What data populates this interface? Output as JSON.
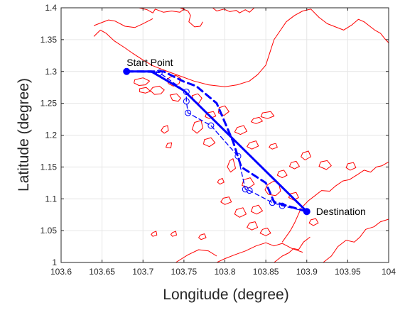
{
  "chart_data": {
    "type": "line",
    "xlabel": "Longitude (degree)",
    "ylabel": "Latitude (degree)",
    "xlim": [
      103.6,
      104.0
    ],
    "ylim": [
      1.0,
      1.4
    ],
    "xticks": [
      103.6,
      103.65,
      103.7,
      103.75,
      103.8,
      103.85,
      103.9,
      103.95,
      104.0
    ],
    "yticks": [
      1.0,
      1.05,
      1.1,
      1.15,
      1.2,
      1.25,
      1.3,
      1.35,
      1.4
    ],
    "xtick_labels": [
      "103.6",
      "103.65",
      "103.7",
      "103.75",
      "103.8",
      "103.85",
      "103.9",
      "103.95",
      "104"
    ],
    "ytick_labels": [
      "1",
      "1.05",
      "1.1",
      "1.15",
      "1.2",
      "1.25",
      "1.3",
      "1.35",
      "1.4"
    ],
    "grid": true,
    "legend": "none",
    "colors": {
      "route": "#0000ff",
      "coastline": "#ff0000",
      "grid": "#e6e6e6",
      "axis": "#262626"
    },
    "annotations": [
      {
        "text": "Start Point",
        "x": 103.68,
        "y": 1.3,
        "anchor": "above-right"
      },
      {
        "text": "Destination",
        "x": 103.9,
        "y": 1.08,
        "anchor": "right"
      }
    ],
    "endpoints": [
      {
        "label": "Start Point",
        "x": 103.68,
        "y": 1.3
      },
      {
        "label": "Destination",
        "x": 103.9,
        "y": 1.08
      }
    ],
    "series": [
      {
        "style": "solid-thick",
        "x": [
          103.68,
          103.71,
          103.75,
          103.9
        ],
        "y": [
          1.3,
          1.3,
          1.27,
          1.08
        ]
      },
      {
        "style": "dashed-thick",
        "x": [
          103.68,
          103.715,
          103.725,
          103.75,
          103.765,
          103.79,
          103.81,
          103.82,
          103.85,
          103.86,
          103.9
        ],
        "y": [
          1.3,
          1.3,
          1.3,
          1.284,
          1.277,
          1.25,
          1.19,
          1.15,
          1.125,
          1.095,
          1.08
        ]
      },
      {
        "style": "dashed-thin-circles",
        "markers": "circle",
        "x": [
          103.68,
          103.72,
          103.753,
          103.753,
          103.755,
          103.783,
          103.816,
          103.825,
          103.83,
          103.858,
          103.87,
          103.9
        ],
        "y": [
          1.3,
          1.298,
          1.268,
          1.253,
          1.235,
          1.215,
          1.167,
          1.115,
          1.113,
          1.094,
          1.089,
          1.08
        ]
      }
    ],
    "coastlines": [
      {
        "x": [
          103.64,
          103.648,
          103.655,
          103.665,
          103.678,
          103.688,
          103.7,
          103.712,
          103.728,
          103.745,
          103.762,
          103.78,
          103.8,
          103.815,
          103.83,
          103.84,
          103.85,
          103.855,
          103.86,
          103.868,
          103.875,
          103.885,
          103.895,
          103.905,
          103.915,
          103.925,
          103.935,
          103.945,
          103.955,
          103.963,
          103.97,
          103.978,
          103.983,
          103.99,
          103.995,
          104.0
        ],
        "y": [
          1.355,
          1.365,
          1.36,
          1.348,
          1.337,
          1.328,
          1.318,
          1.309,
          1.301,
          1.293,
          1.285,
          1.279,
          1.276,
          1.279,
          1.285,
          1.295,
          1.31,
          1.33,
          1.35,
          1.365,
          1.378,
          1.388,
          1.395,
          1.398,
          1.385,
          1.375,
          1.37,
          1.365,
          1.373,
          1.382,
          1.378,
          1.37,
          1.365,
          1.36,
          1.352,
          1.345
        ]
      },
      {
        "x": [
          103.64,
          103.65,
          103.658,
          103.666,
          103.678,
          103.69,
          103.7,
          103.712
        ],
        "y": [
          1.372,
          1.377,
          1.381,
          1.379,
          1.371,
          1.369,
          1.375,
          1.383
        ]
      },
      {
        "x": [
          103.695,
          103.705,
          103.712,
          103.715,
          103.725,
          103.735,
          103.745,
          103.75,
          103.748
        ],
        "y": [
          1.4,
          1.397,
          1.392,
          1.398,
          1.393,
          1.395,
          1.393,
          1.398,
          1.4
        ]
      },
      {
        "x": [
          103.745,
          103.755,
          103.758,
          103.756,
          103.763,
          103.77,
          103.773
        ],
        "y": [
          1.4,
          1.395,
          1.388,
          1.378,
          1.37,
          1.371,
          1.378
        ]
      },
      {
        "x": [
          103.785,
          103.79,
          103.799,
          103.806,
          103.814,
          103.818,
          103.825,
          103.83,
          103.836
        ],
        "y": [
          1.4,
          1.395,
          1.398,
          1.394,
          1.396,
          1.392,
          1.397,
          1.393,
          1.4
        ]
      },
      {
        "x": [
          103.87,
          103.88,
          103.885,
          103.893,
          103.902,
          103.91,
          103.918,
          103.928,
          103.935,
          103.944,
          103.952,
          103.962,
          103.97,
          103.978,
          103.985,
          103.992,
          104.0
        ],
        "y": [
          1.032,
          1.05,
          1.062,
          1.085,
          1.097,
          1.105,
          1.113,
          1.112,
          1.12,
          1.128,
          1.13,
          1.138,
          1.145,
          1.142,
          1.15,
          1.152,
          1.158
        ]
      },
      {
        "x": [
          103.92,
          103.93,
          103.938,
          103.948,
          103.958,
          103.965,
          103.972,
          103.982,
          103.99,
          104.0
        ],
        "y": [
          1.0,
          1.01,
          1.025,
          1.035,
          1.032,
          1.04,
          1.052,
          1.056,
          1.064,
          1.068
        ]
      },
      {
        "x": [
          103.79,
          103.8,
          103.812,
          103.825,
          103.838,
          103.85,
          103.86,
          103.87,
          103.882,
          103.895
        ],
        "y": [
          1.0,
          1.006,
          1.012,
          1.018,
          1.026,
          1.031,
          1.026,
          1.03,
          1.022,
          1.016
        ]
      },
      {
        "x": [
          103.74,
          103.755,
          103.768,
          103.78,
          103.79
        ],
        "y": [
          1.0,
          1.012,
          1.02,
          1.018,
          1.01
        ]
      },
      {
        "x": [
          103.86,
          103.87,
          103.878,
          103.884,
          103.89,
          103.896,
          103.904
        ],
        "y": [
          1.0,
          1.01,
          1.015,
          1.022,
          1.02,
          1.032,
          1.04
        ]
      }
    ],
    "islands": [
      {
        "x": [
          103.733,
          103.74,
          103.746,
          103.744,
          103.737,
          103.731,
          103.729
        ],
        "y": [
          1.291,
          1.294,
          1.289,
          1.281,
          1.277,
          1.281,
          1.287
        ]
      },
      {
        "x": [
          103.712,
          103.72,
          103.726,
          103.722,
          103.714,
          103.709
        ],
        "y": [
          1.275,
          1.277,
          1.271,
          1.265,
          1.264,
          1.27
        ]
      },
      {
        "x": [
          103.733,
          103.741,
          103.746,
          103.743,
          103.736
        ],
        "y": [
          1.263,
          1.265,
          1.258,
          1.253,
          1.255
        ]
      },
      {
        "x": [
          103.69,
          103.7,
          103.708,
          103.703,
          103.695,
          103.689
        ],
        "y": [
          1.287,
          1.29,
          1.285,
          1.279,
          1.278,
          1.282
        ]
      },
      {
        "x": [
          103.696,
          103.704,
          103.709,
          103.703,
          103.696
        ],
        "y": [
          1.273,
          1.275,
          1.269,
          1.266,
          1.268
        ]
      },
      {
        "x": [
          103.76,
          103.767,
          103.772,
          103.768,
          103.762
        ],
        "y": [
          1.262,
          1.265,
          1.258,
          1.25,
          1.253
        ]
      },
      {
        "x": [
          103.763,
          103.771,
          103.773,
          103.766,
          103.76
        ],
        "y": [
          1.22,
          1.223,
          1.211,
          1.203,
          1.209
        ]
      },
      {
        "x": [
          103.775,
          103.783,
          103.788,
          103.781,
          103.774
        ],
        "y": [
          1.193,
          1.196,
          1.188,
          1.182,
          1.186
        ]
      },
      {
        "x": [
          103.793,
          103.8,
          103.805,
          103.799,
          103.792
        ],
        "y": [
          1.243,
          1.246,
          1.237,
          1.231,
          1.235
        ]
      },
      {
        "x": [
          103.815,
          103.823,
          103.827,
          103.819,
          103.812
        ],
        "y": [
          1.212,
          1.215,
          1.206,
          1.201,
          1.205
        ]
      },
      {
        "x": [
          103.835,
          103.842,
          103.846,
          103.838,
          103.832
        ],
        "y": [
          1.226,
          1.228,
          1.222,
          1.218,
          1.221
        ]
      },
      {
        "x": [
          103.846,
          103.856,
          103.86,
          103.852,
          103.844
        ],
        "y": [
          1.235,
          1.237,
          1.23,
          1.226,
          1.229
        ]
      },
      {
        "x": [
          103.83,
          103.838,
          103.841,
          103.833,
          103.827
        ],
        "y": [
          1.188,
          1.191,
          1.183,
          1.178,
          1.182
        ]
      },
      {
        "x": [
          103.778,
          103.786,
          103.789,
          103.781,
          103.776
        ],
        "y": [
          1.235,
          1.237,
          1.23,
          1.226,
          1.229
        ]
      },
      {
        "x": [
          103.725,
          103.73,
          103.731,
          103.726,
          103.722
        ],
        "y": [
          1.213,
          1.215,
          1.207,
          1.203,
          1.207
        ]
      },
      {
        "x": [
          103.73,
          103.735,
          103.734,
          103.728
        ],
        "y": [
          1.187,
          1.188,
          1.18,
          1.181
        ]
      },
      {
        "x": [
          103.806,
          103.81,
          103.813,
          103.807,
          103.803
        ],
        "y": [
          1.16,
          1.163,
          1.148,
          1.142,
          1.15
        ]
      },
      {
        "x": [
          103.823,
          103.831,
          103.836,
          103.829,
          103.821
        ],
        "y": [
          1.13,
          1.133,
          1.123,
          1.117,
          1.121
        ]
      },
      {
        "x": [
          103.798,
          103.805,
          103.808,
          103.8,
          103.795
        ],
        "y": [
          1.101,
          1.103,
          1.095,
          1.091,
          1.095
        ]
      },
      {
        "x": [
          103.814,
          103.822,
          103.826,
          103.818,
          103.812
        ],
        "y": [
          1.083,
          1.086,
          1.076,
          1.071,
          1.076
        ]
      },
      {
        "x": [
          103.834,
          103.841,
          103.846,
          103.839,
          103.832
        ],
        "y": [
          1.087,
          1.09,
          1.081,
          1.076,
          1.08
        ]
      },
      {
        "x": [
          103.83,
          103.837,
          103.84,
          103.833,
          103.827
        ],
        "y": [
          1.062,
          1.064,
          1.055,
          1.051,
          1.055
        ]
      },
      {
        "x": [
          103.846,
          103.852,
          103.856,
          103.85,
          103.843
        ],
        "y": [
          1.052,
          1.054,
          1.046,
          1.042,
          1.046
        ]
      },
      {
        "x": [
          103.852,
          103.86,
          103.866,
          103.868,
          103.862,
          103.853,
          103.849
        ],
        "y": [
          1.122,
          1.128,
          1.123,
          1.112,
          1.105,
          1.107,
          1.114
        ]
      },
      {
        "x": [
          103.866,
          103.872,
          103.876,
          103.87,
          103.864
        ],
        "y": [
          1.143,
          1.145,
          1.137,
          1.133,
          1.137
        ]
      },
      {
        "x": [
          103.881,
          103.887,
          103.891,
          103.885,
          103.879
        ],
        "y": [
          1.157,
          1.159,
          1.151,
          1.147,
          1.151
        ]
      },
      {
        "x": [
          103.895,
          103.902,
          103.905,
          103.898,
          103.893
        ],
        "y": [
          1.172,
          1.175,
          1.166,
          1.161,
          1.166
        ]
      },
      {
        "x": [
          103.917,
          103.925,
          103.93,
          103.924,
          103.915
        ],
        "y": [
          1.158,
          1.16,
          1.152,
          1.146,
          1.151
        ]
      },
      {
        "x": [
          103.95,
          103.957,
          103.96,
          103.953,
          103.948
        ],
        "y": [
          1.155,
          1.157,
          1.149,
          1.145,
          1.149
        ]
      },
      {
        "x": [
          103.793,
          103.797,
          103.799,
          103.794,
          103.791
        ],
        "y": [
          1.13,
          1.132,
          1.126,
          1.123,
          1.126
        ]
      },
      {
        "x": [
          103.77,
          103.775,
          103.777,
          103.771,
          103.768
        ],
        "y": [
          1.043,
          1.045,
          1.039,
          1.036,
          1.039
        ]
      },
      {
        "x": [
          103.712,
          103.716,
          103.717,
          103.712,
          103.71
        ],
        "y": [
          1.047,
          1.049,
          1.043,
          1.041,
          1.044
        ]
      },
      {
        "x": [
          103.736,
          103.74,
          103.741,
          103.736,
          103.734
        ],
        "y": [
          1.047,
          1.049,
          1.043,
          1.041,
          1.044
        ]
      },
      {
        "x": [
          103.856,
          103.862,
          103.864,
          103.858,
          103.854
        ],
        "y": [
          1.185,
          1.187,
          1.181,
          1.178,
          1.181
        ]
      },
      {
        "x": [
          103.88,
          103.887,
          103.89,
          103.884,
          103.878
        ],
        "y": [
          1.108,
          1.11,
          1.102,
          1.098,
          1.102
        ]
      },
      {
        "x": [
          103.905,
          103.911,
          103.914,
          103.908,
          103.903
        ],
        "y": [
          1.067,
          1.069,
          1.062,
          1.058,
          1.062
        ]
      }
    ]
  }
}
